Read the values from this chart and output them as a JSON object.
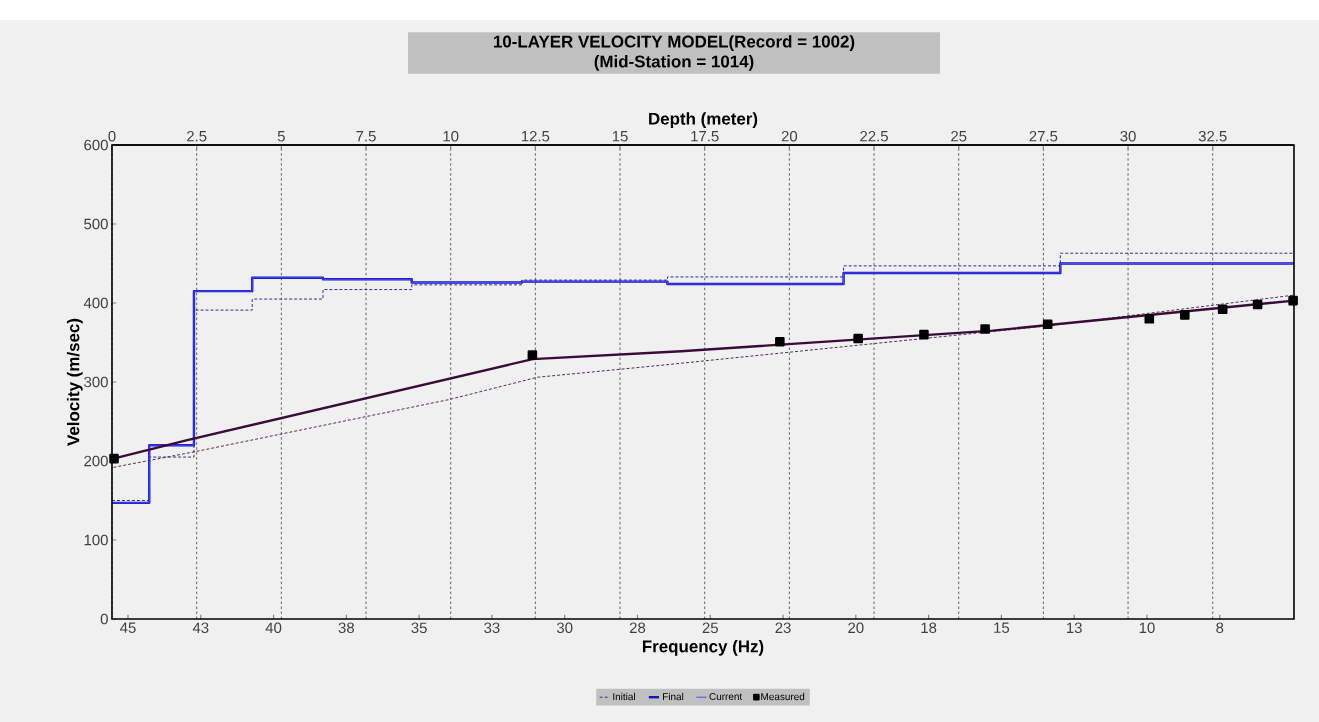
{
  "chart_data": {
    "type": "line",
    "title": "10-LAYER VELOCITY MODEL(Record = 1002)",
    "subtitle": "(Mid-Station = 1014)",
    "xlabel": "Frequency (Hz)",
    "x2label": "Depth (meter)",
    "ylabel": "Velocity (m/sec)",
    "xlim": [
      45.55,
      4.95
    ],
    "xticks": [
      45,
      {
        "value": 42.5,
        "label": "43"
      },
      40,
      {
        "value": 37.5,
        "label": "38"
      },
      35,
      {
        "value": 32.5,
        "label": "33"
      },
      30,
      {
        "value": 27.5,
        "label": "28"
      },
      25,
      {
        "value": 22.5,
        "label": "23"
      },
      20,
      {
        "value": 17.5,
        "label": "18"
      },
      15,
      {
        "value": 12.5,
        "label": "13"
      },
      10,
      {
        "value": 7.5,
        "label": "8"
      }
    ],
    "x2lim": [
      0,
      34.9
    ],
    "x2ticks": [
      0,
      2.5,
      5,
      7.5,
      10,
      12.5,
      15,
      17.5,
      20,
      22.5,
      25,
      27.5,
      30,
      32.5
    ],
    "ylim": [
      0,
      600
    ],
    "yticks": [
      0,
      100,
      200,
      300,
      400,
      500,
      600
    ],
    "grid": true,
    "legend": "bottom",
    "series": [
      {
        "name": "Initial",
        "type": "step",
        "axis": "x2",
        "line_style": "dashed",
        "color": "#30308a",
        "x": [
          0,
          1.1,
          2.42,
          4.14,
          6.23,
          8.85,
          12.1,
          16.4,
          21.6,
          28.0,
          34.9
        ],
        "values": [
          150,
          205,
          391,
          405,
          417,
          423,
          429,
          433,
          447,
          463,
          463
        ]
      },
      {
        "name": "Final",
        "type": "step",
        "axis": "x2",
        "color": "#1414c0",
        "x": [
          0,
          1.1,
          2.42,
          4.14,
          6.23,
          8.85,
          12.1,
          16.4,
          21.6,
          28.0,
          34.9
        ],
        "values": [
          147,
          220,
          415,
          432,
          430,
          426,
          427,
          424,
          438,
          450,
          450
        ]
      },
      {
        "name": "Current",
        "type": "step",
        "axis": "x2",
        "color": "#4a4aff",
        "x": [
          0,
          1.1,
          2.42,
          4.14,
          6.23,
          8.85,
          12.1,
          16.4,
          21.6,
          28.0,
          34.9
        ],
        "values": [
          147,
          220,
          415,
          432,
          430,
          426,
          427,
          424,
          438,
          450,
          450
        ]
      },
      {
        "line_style": "dashed",
        "color": "#503050",
        "x": [
          45.5,
          42.67,
          33.94,
          30.94,
          26.73,
          13.42,
          4.95
        ],
        "values": [
          192,
          212,
          278,
          306,
          321,
          371,
          410
        ]
      },
      {
        "color": "#3a0a3a",
        "x": [
          45.5,
          43,
          31.1,
          26.0,
          15.3,
          4.95
        ],
        "values": [
          203,
          226,
          329,
          339,
          365,
          403
        ]
      },
      {
        "name": "Measured",
        "type": "scatter",
        "marker": "square",
        "color": "#000000",
        "x": [
          45.48,
          31.11,
          22.61,
          19.92,
          17.66,
          15.56,
          13.41,
          9.92,
          8.7,
          7.4,
          6.2,
          4.98
        ],
        "values": [
          203,
          334,
          351,
          355,
          360,
          367,
          373,
          380,
          385,
          392,
          398,
          403
        ]
      }
    ]
  }
}
